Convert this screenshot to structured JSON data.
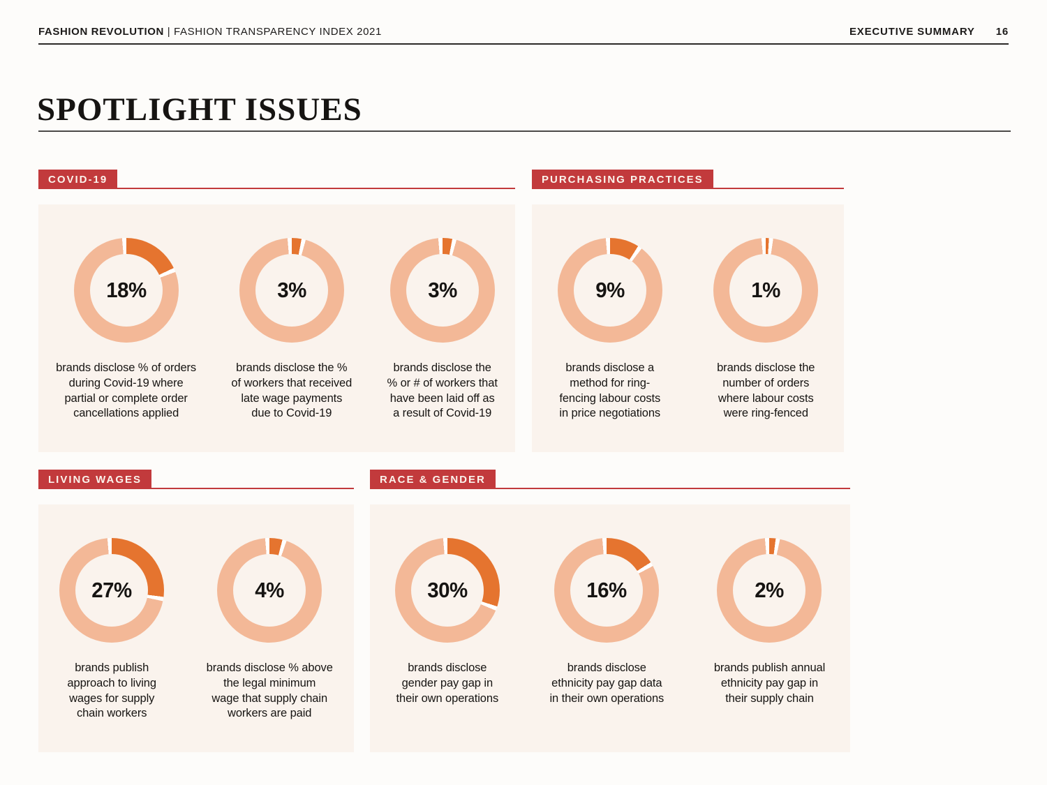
{
  "header": {
    "brand": "FASHION REVOLUTION",
    "divider": "|",
    "document_title": "FASHION TRANSPARENCY INDEX 2021",
    "section": "EXECUTIVE SUMMARY",
    "page_number": "16"
  },
  "title": "SPOTLIGHT ISSUES",
  "colors": {
    "badge_red": "#c23a3c",
    "dark_orange": "#e5742f",
    "light_peach": "#f3b897",
    "card_bg": "#faf3ed",
    "gap_white": "#ffffff"
  },
  "sections": [
    {
      "label": "COVID-19",
      "charts": [
        {
          "value": 18,
          "label": "18%",
          "caption": "brands disclose % of orders\nduring Covid-19 where\npartial or complete order\ncancellations applied"
        },
        {
          "value": 3,
          "label": "3%",
          "caption": "brands disclose the %\nof workers that received\nlate wage payments\ndue to Covid-19"
        },
        {
          "value": 3,
          "label": "3%",
          "caption": "brands disclose the\n% or # of workers that\nhave been laid off as\na result of Covid-19"
        }
      ]
    },
    {
      "label": "PURCHASING PRACTICES",
      "charts": [
        {
          "value": 9,
          "label": "9%",
          "caption": "brands disclose a\nmethod for ring-\nfencing labour costs\nin price negotiations"
        },
        {
          "value": 1,
          "label": "1%",
          "caption": "brands disclose the\nnumber of orders\nwhere labour costs\nwere ring-fenced"
        }
      ]
    },
    {
      "label": "LIVING WAGES",
      "charts": [
        {
          "value": 27,
          "label": "27%",
          "caption": "brands publish\napproach to living\nwages for supply\nchain workers"
        },
        {
          "value": 4,
          "label": "4%",
          "caption": "brands disclose % above\nthe legal minimum\nwage that supply chain\nworkers are paid"
        }
      ]
    },
    {
      "label": "RACE & GENDER",
      "charts": [
        {
          "value": 30,
          "label": "30%",
          "caption": "brands disclose\ngender pay gap in\ntheir own operations"
        },
        {
          "value": 16,
          "label": "16%",
          "caption": "brands disclose\nethnicity pay gap data\nin their own operations"
        },
        {
          "value": 2,
          "label": "2%",
          "caption": "brands publish annual\nethnicity pay gap in\ntheir supply chain"
        }
      ]
    }
  ],
  "chart_data": {
    "type": "pie",
    "style": "donut",
    "unit": "percent of brands disclosing",
    "groups": [
      {
        "section": "COVID-19",
        "values": [
          18,
          3,
          3
        ]
      },
      {
        "section": "PURCHASING PRACTICES",
        "values": [
          9,
          1
        ]
      },
      {
        "section": "LIVING WAGES",
        "values": [
          27,
          4
        ]
      },
      {
        "section": "RACE & GENDER",
        "values": [
          30,
          16,
          2
        ]
      }
    ]
  }
}
